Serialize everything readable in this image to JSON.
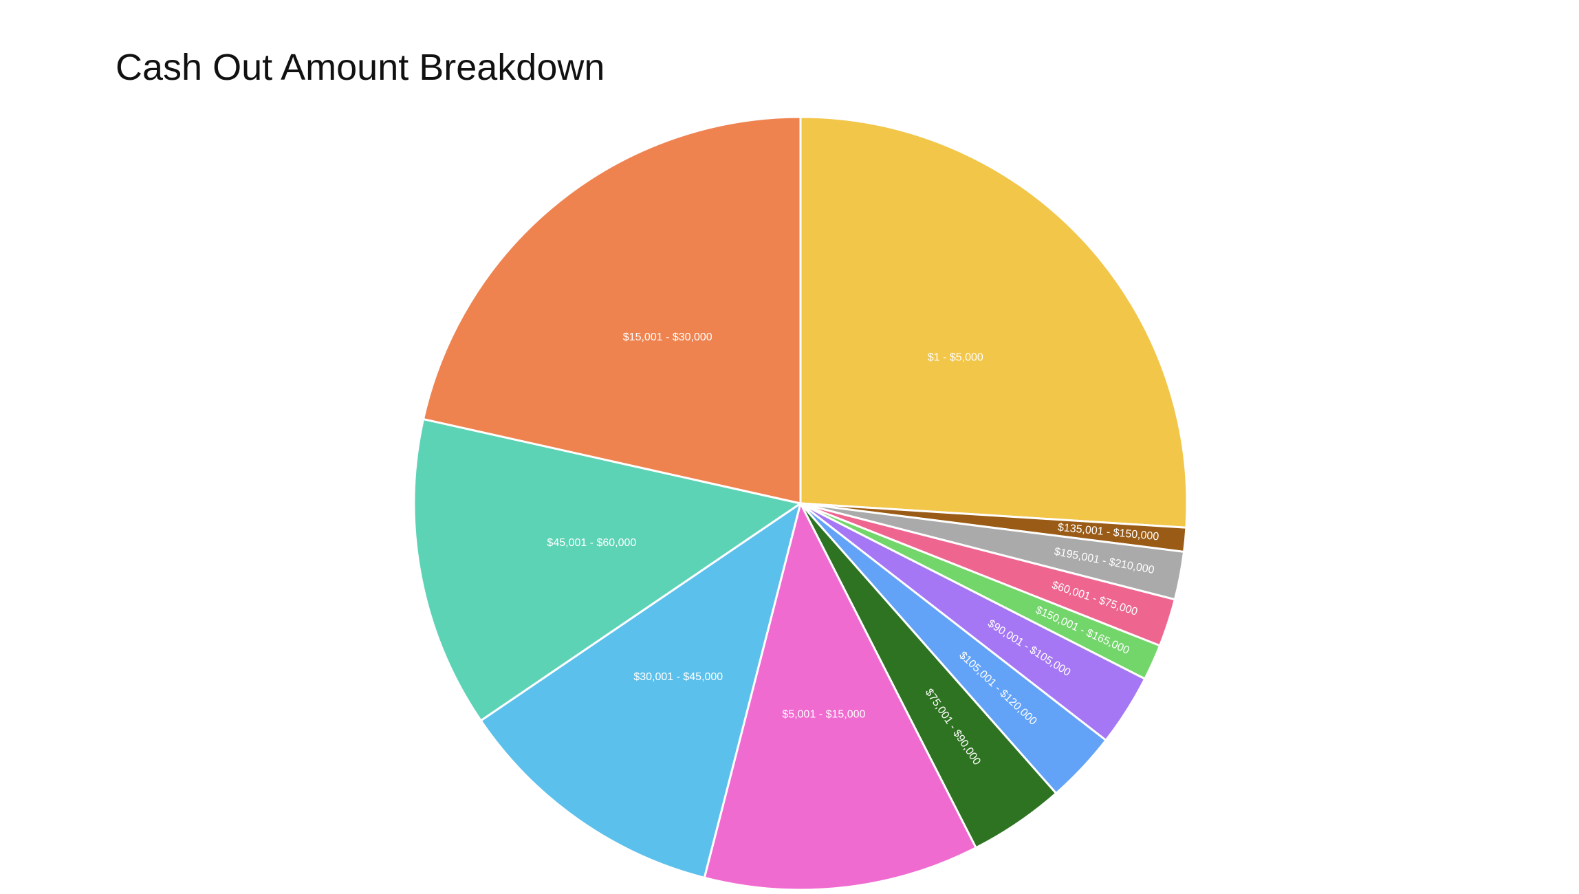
{
  "chart_data": {
    "type": "pie",
    "title": "Cash Out Amount Breakdown",
    "slices": [
      {
        "label": "$1 - $5,000",
        "value": 26.0,
        "color": "#F2C648"
      },
      {
        "label": "$135,001 - $150,000",
        "value": 1.0,
        "color": "#9A5B16"
      },
      {
        "label": "$195,001 - $210,000",
        "value": 2.0,
        "color": "#AAAAAA"
      },
      {
        "label": "$60,001 - $75,000",
        "value": 2.0,
        "color": "#EE6590"
      },
      {
        "label": "$150,001 - $165,000",
        "value": 1.5,
        "color": "#72D66A"
      },
      {
        "label": "$90,001 - $105,000",
        "value": 3.0,
        "color": "#A577F5"
      },
      {
        "label": "$105,001 - $120,000",
        "value": 3.0,
        "color": "#62A3F8"
      },
      {
        "label": "$75,001 - $90,000",
        "value": 4.0,
        "color": "#2E7321"
      },
      {
        "label": "$5,001 - $15,000",
        "value": 11.5,
        "color": "#F06BD0"
      },
      {
        "label": "$30,001 - $45,000",
        "value": 11.5,
        "color": "#5CC0EC"
      },
      {
        "label": "$45,001 - $60,000",
        "value": 13.0,
        "color": "#5DD3B5"
      },
      {
        "label": "$15,001 - $30,000",
        "value": 21.5,
        "color": "#EE8350"
      }
    ],
    "start": "12 o'clock",
    "direction": "clockwise",
    "legend": "none"
  }
}
